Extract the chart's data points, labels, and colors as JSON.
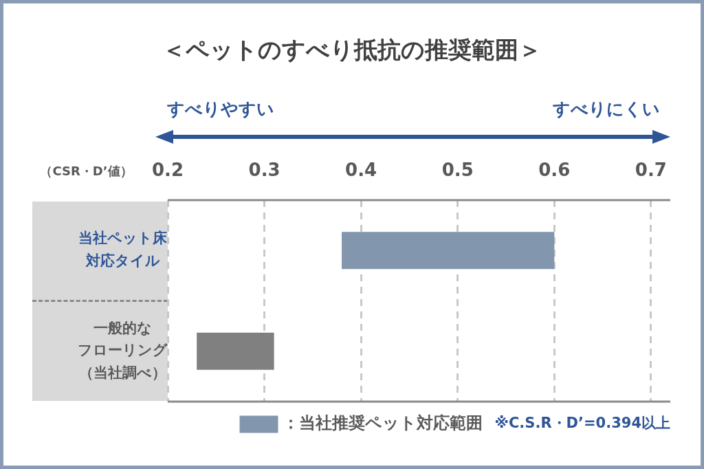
{
  "chart_data": {
    "type": "bar",
    "orientation": "horizontal",
    "title": "＜ペットのすべり抵抗の推奨範囲＞",
    "xlabel": "（CSR・D’値）",
    "categories": [
      "当社ペット床対応タイル",
      "一般的なフローリング（当社調べ）"
    ],
    "series": [
      {
        "name": "：当社推奨ペット対応範囲",
        "color": "#8296ae",
        "base": [
          0.38,
          null
        ],
        "values": [
          0.22,
          null
        ]
      },
      {
        "color": "#808080",
        "base": [
          null,
          0.23
        ],
        "values": [
          null,
          0.08
        ]
      }
    ],
    "xlim": [
      0.2,
      0.72
    ],
    "xticks": [
      0.2,
      0.3,
      0.4,
      0.5,
      0.6,
      0.7
    ],
    "grid": "x",
    "legend": "bottom",
    "annotations": [
      "すべりやすい",
      "すべりにくい",
      "※C.S.R・D’=0.394以上"
    ]
  }
}
